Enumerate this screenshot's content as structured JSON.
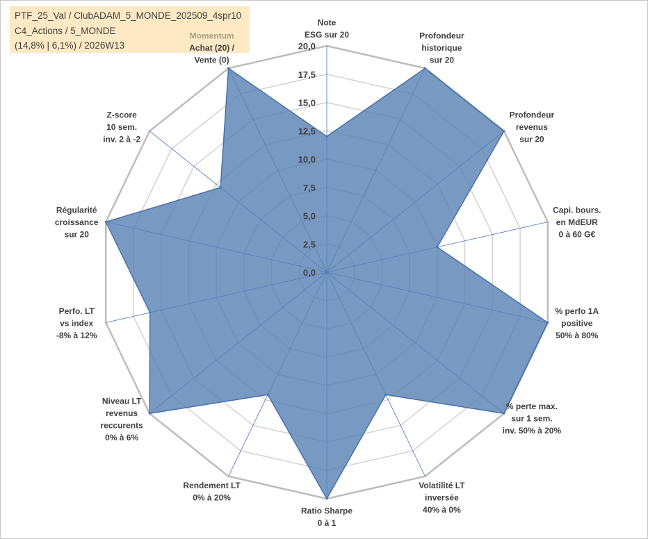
{
  "info": {
    "line1": "PTF_25_Val / ClubADAM_5_MONDE_202509_4spr10",
    "line2": "C4_Actions / 5_MONDE",
    "line3": "(14,8% | 6,1%) / 2026W13"
  },
  "chart_data": {
    "type": "radar",
    "title": "",
    "range": [
      0,
      20
    ],
    "tick_step": 2.5,
    "tick_labels": [
      "0,0",
      "2,5",
      "5,0",
      "7,5",
      "10,0",
      "12,5",
      "15,0",
      "17,5",
      "20,0"
    ],
    "group_label": "Momentum",
    "axes": [
      {
        "lines": [
          "Note",
          "ESG sur 20"
        ],
        "value": 12.0
      },
      {
        "lines": [
          "Profondeur",
          "historique",
          "sur 20"
        ],
        "value": 20.0
      },
      {
        "lines": [
          "Profondeur",
          "revenus",
          "sur 20"
        ],
        "value": 20.0
      },
      {
        "lines": [
          "Capi. bours.",
          "en MdEUR",
          "0 à 60 G€"
        ],
        "value": 10.0
      },
      {
        "lines": [
          "% perfo 1A",
          "positive",
          "50% à 80%"
        ],
        "value": 20.0
      },
      {
        "lines": [
          "% perte max.",
          "sur 1 sem.",
          "inv. 50% à 20%"
        ],
        "value": 20.0
      },
      {
        "lines": [
          "Volatilité LT",
          "inversée",
          "40% à 0%"
        ],
        "value": 12.0
      },
      {
        "lines": [
          "Ratio Sharpe",
          "0 à 1"
        ],
        "value": 20.0
      },
      {
        "lines": [
          "Rendement LT",
          "0% à 20%"
        ],
        "value": 12.0
      },
      {
        "lines": [
          "Niveau LT",
          "revenus",
          "reccurents",
          "0% à 6%"
        ],
        "value": 20.0
      },
      {
        "lines": [
          "Perfo. LT",
          "vs index",
          "-8% à 12%"
        ],
        "value": 16.0
      },
      {
        "lines": [
          "Régularité",
          "croissance",
          "sur 20"
        ],
        "value": 20.0
      },
      {
        "lines": [
          "Z-score",
          "10 sem.",
          "inv. 2 à -2"
        ],
        "value": 12.0
      },
      {
        "lines": [
          "Achat (20) /",
          "Vente (0)"
        ],
        "value": 20.0
      }
    ],
    "colors": {
      "fill": "#5a82b4",
      "stroke": "#4a72a8",
      "grid_outer": "#bcbcbc",
      "grid_inner": "#d2d2d2",
      "spoke": "#4472c4"
    }
  }
}
